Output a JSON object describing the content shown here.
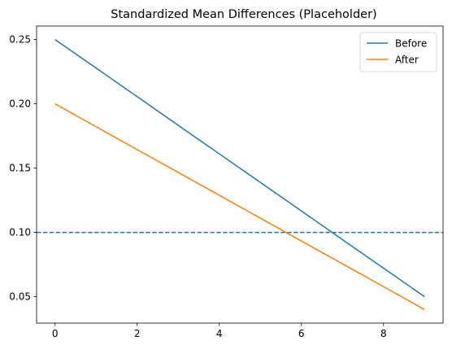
{
  "chart_data": {
    "type": "line",
    "title": "Standardized Mean Differences (Placeholder)",
    "xlabel": "",
    "ylabel": "",
    "x": [
      0,
      1,
      2,
      3,
      4,
      5,
      6,
      7,
      8,
      9
    ],
    "series": [
      {
        "name": "Before",
        "color": "#1f77b4",
        "values": [
          0.25,
          0.2278,
          0.2056,
          0.1833,
          0.1611,
          0.1389,
          0.1167,
          0.0944,
          0.0722,
          0.05
        ]
      },
      {
        "name": "After",
        "color": "#ff7f0e",
        "values": [
          0.2,
          0.1822,
          0.1644,
          0.1467,
          0.1289,
          0.1111,
          0.0933,
          0.0756,
          0.0578,
          0.04
        ]
      }
    ],
    "reference_line": {
      "y": 0.1,
      "style": "dashed",
      "color": "#1f77b4"
    },
    "xlim": [
      -0.45,
      9.45
    ],
    "ylim": [
      0.0295,
      0.2605
    ],
    "xticks": [
      "0",
      "2",
      "4",
      "6",
      "8"
    ],
    "yticks": [
      "0.05",
      "0.10",
      "0.15",
      "0.20",
      "0.25"
    ],
    "legend": "top-right",
    "grid": false
  }
}
